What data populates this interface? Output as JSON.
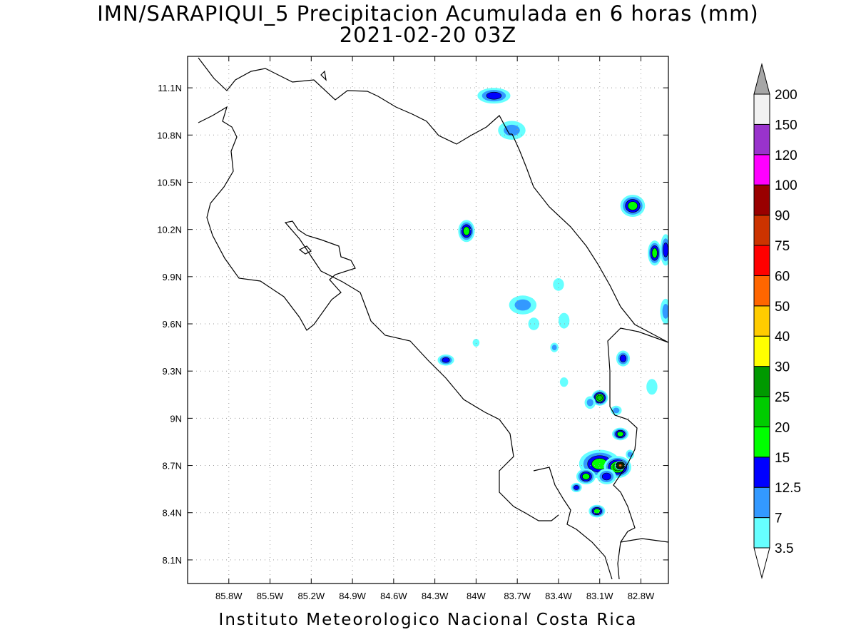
{
  "title": {
    "line1": "IMN/SARAPIQUI_5 Precipitacion Acumulada en 6 horas (mm)",
    "line2": "2021-02-20 03Z"
  },
  "footer": "Instituto Meteorologico Nacional Costa Rica",
  "map": {
    "lon_range": [
      -86.1,
      -82.6
    ],
    "lat_range": [
      7.95,
      11.3
    ],
    "lon_ticks": [
      "85.8W",
      "85.5W",
      "85.2W",
      "84.9W",
      "84.6W",
      "84.3W",
      "84W",
      "83.7W",
      "83.4W",
      "83.1W",
      "82.8W"
    ],
    "lat_ticks": [
      "11.1N",
      "10.8N",
      "10.5N",
      "10.2N",
      "9.9N",
      "9.6N",
      "9.3N",
      "9N",
      "8.7N",
      "8.4N",
      "8.1N"
    ],
    "grid": "dotted"
  },
  "colorbar": {
    "levels": [
      "3.5",
      "7",
      "12.5",
      "15",
      "20",
      "25",
      "30",
      "40",
      "50",
      "60",
      "75",
      "90",
      "100",
      "120",
      "150",
      "200"
    ],
    "colors": [
      "#66ffff",
      "#3399ff",
      "#0000ff",
      "#00ff00",
      "#00cc00",
      "#009900",
      "#ffff00",
      "#ffcc00",
      "#ff6600",
      "#ff0000",
      "#cc3300",
      "#990000",
      "#ff00ff",
      "#9933cc",
      "#f2f2f2"
    ],
    "over_color": "#a6a6a6",
    "under_color": "#ffffff"
  },
  "precip_cells": [
    {
      "lon": -83.1,
      "lat": 8.71,
      "rx": 0.15,
      "ry": 0.09,
      "level": 4
    },
    {
      "lon": -82.97,
      "lat": 8.69,
      "rx": 0.1,
      "ry": 0.07,
      "level": 5
    },
    {
      "lon": -82.95,
      "lat": 8.7,
      "rx": 0.04,
      "ry": 0.03,
      "level": 9
    },
    {
      "lon": -83.05,
      "lat": 8.63,
      "rx": 0.07,
      "ry": 0.05,
      "level": 3
    },
    {
      "lon": -83.2,
      "lat": 8.63,
      "rx": 0.07,
      "ry": 0.05,
      "level": 4
    },
    {
      "lon": -82.95,
      "lat": 8.9,
      "rx": 0.06,
      "ry": 0.04,
      "level": 4
    },
    {
      "lon": -83.1,
      "lat": 9.13,
      "rx": 0.06,
      "ry": 0.05,
      "level": 5
    },
    {
      "lon": -83.17,
      "lat": 9.1,
      "rx": 0.04,
      "ry": 0.04,
      "level": 2
    },
    {
      "lon": -83.12,
      "lat": 8.41,
      "rx": 0.06,
      "ry": 0.04,
      "level": 4
    },
    {
      "lon": -83.27,
      "lat": 8.56,
      "rx": 0.04,
      "ry": 0.03,
      "level": 3
    },
    {
      "lon": -84.07,
      "lat": 10.19,
      "rx": 0.06,
      "ry": 0.07,
      "level": 4
    },
    {
      "lon": -84.22,
      "lat": 9.37,
      "rx": 0.06,
      "ry": 0.035,
      "level": 3
    },
    {
      "lon": -83.66,
      "lat": 9.72,
      "rx": 0.1,
      "ry": 0.06,
      "level": 2
    },
    {
      "lon": -83.87,
      "lat": 11.05,
      "rx": 0.12,
      "ry": 0.05,
      "level": 3
    },
    {
      "lon": -83.74,
      "lat": 10.83,
      "rx": 0.1,
      "ry": 0.06,
      "level": 2
    },
    {
      "lon": -82.86,
      "lat": 10.35,
      "rx": 0.09,
      "ry": 0.07,
      "level": 4
    },
    {
      "lon": -82.7,
      "lat": 10.05,
      "rx": 0.05,
      "ry": 0.08,
      "level": 4
    },
    {
      "lon": -82.62,
      "lat": 10.07,
      "rx": 0.04,
      "ry": 0.1,
      "level": 3
    },
    {
      "lon": -82.62,
      "lat": 9.68,
      "rx": 0.04,
      "ry": 0.08,
      "level": 2
    },
    {
      "lon": -82.93,
      "lat": 9.38,
      "rx": 0.05,
      "ry": 0.05,
      "level": 3
    },
    {
      "lon": -82.98,
      "lat": 9.05,
      "rx": 0.04,
      "ry": 0.03,
      "level": 2
    },
    {
      "lon": -82.72,
      "lat": 9.2,
      "rx": 0.04,
      "ry": 0.05,
      "level": 1
    },
    {
      "lon": -82.88,
      "lat": 8.77,
      "rx": 0.03,
      "ry": 0.03,
      "level": 2
    },
    {
      "lon": -84.0,
      "lat": 9.48,
      "rx": 0.025,
      "ry": 0.025,
      "level": 1
    },
    {
      "lon": -83.43,
      "lat": 9.45,
      "rx": 0.03,
      "ry": 0.03,
      "level": 2
    },
    {
      "lon": -83.36,
      "lat": 9.23,
      "rx": 0.03,
      "ry": 0.03,
      "level": 1
    },
    {
      "lon": -83.58,
      "lat": 9.6,
      "rx": 0.04,
      "ry": 0.04,
      "level": 1
    },
    {
      "lon": -83.36,
      "lat": 9.62,
      "rx": 0.04,
      "ry": 0.05,
      "level": 1
    },
    {
      "lon": -83.4,
      "lat": 9.85,
      "rx": 0.04,
      "ry": 0.04,
      "level": 1
    }
  ]
}
